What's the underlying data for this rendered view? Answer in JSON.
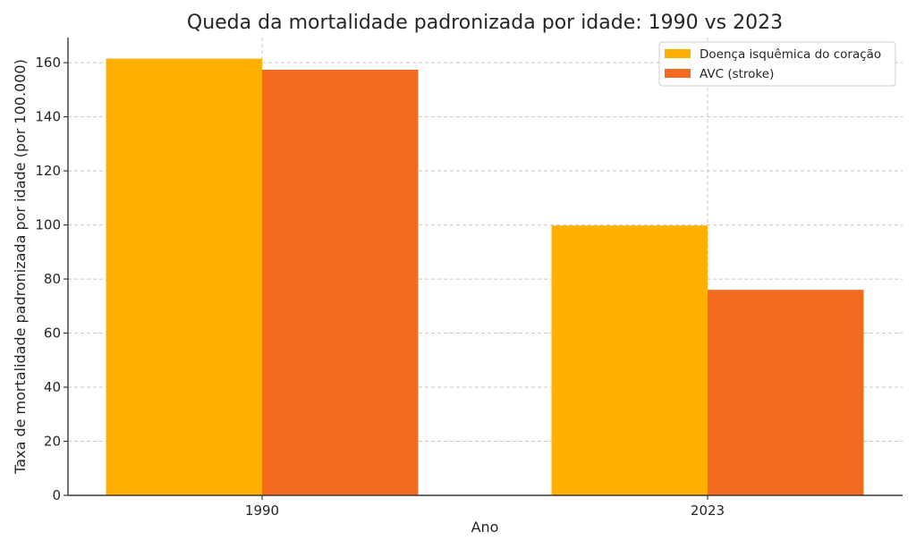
{
  "chart_data": {
    "type": "bar",
    "title": "Queda da mortalidade padronizada por idade: 1990 vs 2023",
    "xlabel": "Ano",
    "ylabel": "Taxa de mortalidade padronizada por idade (por 100.000)",
    "categories": [
      "1990",
      "2023"
    ],
    "series": [
      {
        "name": "Doença isquêmica do coração",
        "color": "#FFB000",
        "values": [
          161.5,
          99.8
        ]
      },
      {
        "name": "AVC (stroke)",
        "color": "#F26B21",
        "values": [
          157.4,
          76.0
        ]
      }
    ],
    "ylim": [
      0,
      169.3
    ],
    "yticks": [
      0,
      20,
      40,
      60,
      80,
      100,
      120,
      140,
      160
    ],
    "grid": true,
    "legend_position": "upper right"
  }
}
